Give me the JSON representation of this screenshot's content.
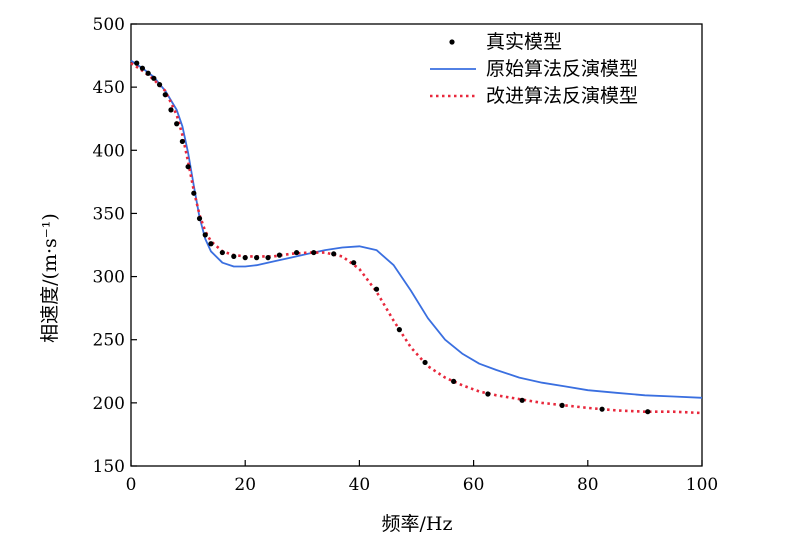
{
  "chart_data": {
    "type": "line",
    "title": "",
    "xlabel": "频率/Hz",
    "ylabel": "相速度/(m·s⁻¹)",
    "xlim": [
      0,
      100
    ],
    "ylim": [
      150,
      500
    ],
    "xticks": [
      0,
      20,
      40,
      60,
      80,
      100
    ],
    "yticks": [
      150,
      200,
      250,
      300,
      350,
      400,
      450,
      500
    ],
    "grid": false,
    "legend_position": "top-right",
    "series": [
      {
        "name": "真实模型",
        "style": "markers",
        "color": "#000000",
        "x": [
          1,
          2,
          3,
          4,
          5,
          6,
          7,
          8,
          9,
          10,
          11,
          12,
          13,
          14,
          16,
          18,
          20,
          22,
          24,
          26,
          29,
          32,
          35.5,
          39,
          43,
          47,
          51.5,
          56.5,
          62.5,
          68.5,
          75.5,
          82.5,
          90.5
        ],
        "y": [
          469,
          465,
          461,
          457,
          452,
          444,
          432,
          421,
          407,
          387,
          366,
          346,
          333,
          326,
          319,
          316,
          315,
          315,
          315,
          317,
          319,
          319,
          318,
          311,
          290,
          258,
          232,
          217,
          207,
          202,
          198,
          195,
          193
        ]
      },
      {
        "name": "原始算法反演模型",
        "style": "solid",
        "color": "#3a6fe0",
        "x": [
          0,
          2,
          4,
          6,
          8,
          9,
          10,
          11,
          12,
          13,
          14,
          16,
          18,
          20,
          22,
          25,
          28,
          31,
          34,
          37,
          40,
          43,
          46,
          49,
          52,
          55,
          58,
          61,
          64,
          68,
          72,
          76,
          80,
          85,
          90,
          95,
          100
        ],
        "y": [
          471,
          465,
          458,
          447,
          432,
          419,
          398,
          372,
          347,
          330,
          320,
          311,
          308,
          308,
          309,
          312,
          315,
          318,
          321,
          323,
          324,
          321,
          309,
          289,
          267,
          250,
          239,
          231,
          226,
          220,
          216,
          213,
          210,
          208,
          206,
          205,
          204
        ]
      },
      {
        "name": "改进算法反演模型",
        "style": "dotted",
        "color": "#e8283c",
        "x": [
          0,
          2,
          4,
          6,
          8,
          9,
          10,
          11,
          12,
          13,
          14,
          16,
          18,
          20,
          22,
          25,
          28,
          31,
          34,
          37,
          40,
          43,
          46,
          49,
          52,
          55,
          58,
          61,
          64,
          68,
          72,
          76,
          80,
          85,
          90,
          95,
          100
        ],
        "y": [
          469,
          463,
          456,
          447,
          428,
          412,
          391,
          368,
          349,
          336,
          328,
          320,
          317,
          316,
          316,
          316,
          318,
          319,
          319,
          316,
          306,
          288,
          265,
          244,
          229,
          220,
          214,
          209,
          206,
          203,
          200,
          198,
          196,
          194,
          193,
          193,
          192
        ]
      }
    ]
  }
}
